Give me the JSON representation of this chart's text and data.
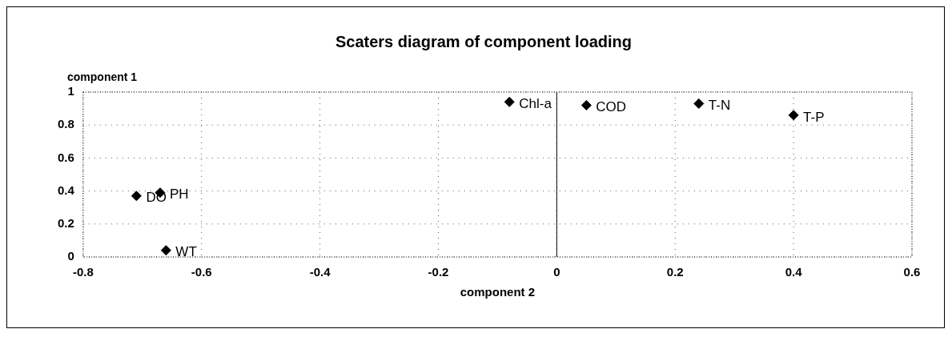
{
  "chart_data": {
    "type": "scatter",
    "title": "Scaters diagram of component loading",
    "xlabel": "component 2",
    "ylabel": "component 1",
    "series": [
      {
        "color": "#000000",
        "x": [
          -0.08,
          0.05,
          0.24,
          0.4,
          -0.71,
          -0.67,
          -0.66
        ],
        "values": [
          0.94,
          0.92,
          0.93,
          0.86,
          0.37,
          0.39,
          0.04
        ]
      }
    ],
    "annotations": [
      {
        "text": "Chl-a",
        "x": -0.08,
        "y": 0.94
      },
      {
        "text": "COD",
        "x": 0.05,
        "y": 0.92
      },
      {
        "text": "T-N",
        "x": 0.24,
        "y": 0.93
      },
      {
        "text": "T-P",
        "x": 0.4,
        "y": 0.86
      },
      {
        "text": "DO",
        "x": -0.71,
        "y": 0.37
      },
      {
        "text": "PH",
        "x": -0.67,
        "y": 0.39
      },
      {
        "text": "WT",
        "x": -0.66,
        "y": 0.04
      }
    ],
    "xlim": [
      -0.8,
      0.6
    ],
    "xticks": [
      -0.8,
      -0.6,
      -0.4,
      -0.2,
      0,
      0.2,
      0.4,
      0.6
    ],
    "ylim": [
      0,
      1
    ],
    "yticks": [
      0,
      0.2,
      0.4,
      0.6,
      0.8,
      1
    ],
    "ref_lines": [
      {
        "axis": "x",
        "value": 0,
        "color": "#000000"
      }
    ],
    "grid": true,
    "marker": "diamond",
    "legend": false
  }
}
